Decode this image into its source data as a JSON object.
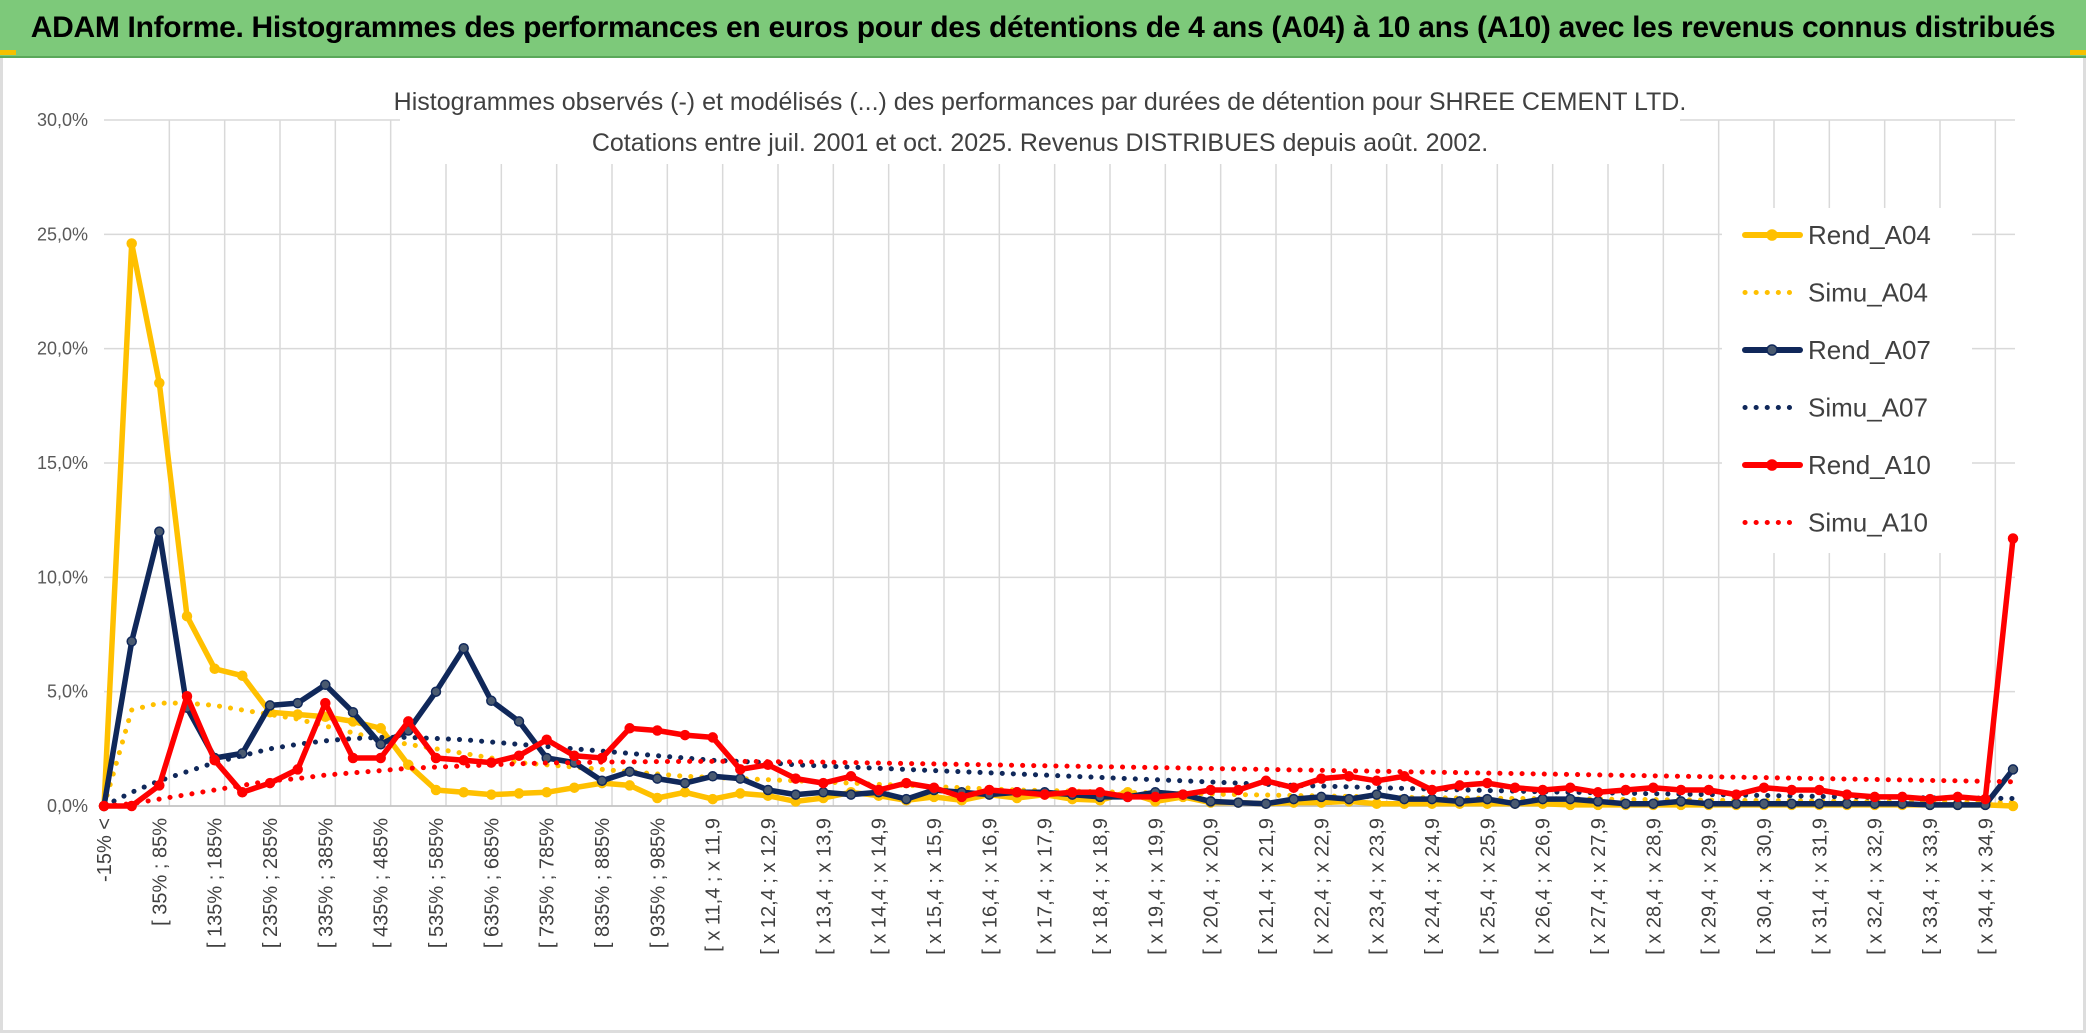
{
  "banner": {
    "title": "ADAM Informe. Histogrammes des performances en euros pour des détentions de 4 ans (A04) à 10 ans (A10) avec les revenus connus distribués"
  },
  "colors": {
    "banner": "#7dc97a",
    "gold": "#ffc000",
    "navy": "#10285a",
    "red": "#ff0000",
    "marker_grey": "#4a5a70"
  },
  "chart_data": {
    "type": "line",
    "title": [
      "Histogrammes observés (-) et modélisés (...) des performances par durées de détention pour SHREE CEMENT LTD.",
      "Cotations entre juil. 2001 et oct. 2025. Revenus DISTRIBUES depuis août. 2002."
    ],
    "xlabel": "",
    "ylabel": "",
    "ylim": [
      0,
      30
    ],
    "yticks": [
      "0,0%",
      "5,0%",
      "10,0%",
      "15,0%",
      "20,0%",
      "25,0%",
      "30,0%"
    ],
    "grid": true,
    "legend_position": "right",
    "category_labels": [
      "-15% <",
      "[ 35% ; 85%",
      "[ 135% ; 185%",
      "[ 235% ; 285%",
      "[ 335% ; 385%",
      "[ 435% ; 485%",
      "[ 535% ; 585%",
      "[ 635% ; 685%",
      "[ 735% ; 785%",
      "[ 835% ; 885%",
      "[ 935% ; 985%",
      "[ x 11,4 ; x 11,9",
      "[ x 12,4 ; x 12,9",
      "[ x 13,4 ; x 13,9",
      "[ x 14,4 ; x 14,9",
      "[ x 15,4 ; x 15,9",
      "[ x 16,4 ; x 16,9",
      "[ x 17,4 ; x 17,9",
      "[ x 18,4 ; x 18,9",
      "[ x 19,4 ; x 19,9",
      "[ x 20,4 ; x 20,9",
      "[ x 21,4 ; x 21,9",
      "[ x 22,4 ; x 22,9",
      "[ x 23,4 ; x 23,9",
      "[ x 24,4 ; x 24,9",
      "[ x 25,4 ; x 25,9",
      "[ x 26,4 ; x 26,9",
      "[ x 27,4 ; x 27,9",
      "[ x 28,4 ; x 28,9",
      "[ x 29,4 ; x 29,9",
      "[ x 30,4 ; x 30,9",
      "[ x 31,4 ; x 31,9",
      "[ x 32,4 ; x 32,9",
      "[ x 33,4 ; x 33,9",
      "[ x 34,4 ; x 34,9"
    ],
    "n_points": 70,
    "series": [
      {
        "name": "Rend_A04",
        "style": "solid",
        "markers": true,
        "color": "#ffc000",
        "values": [
          0.0,
          24.6,
          18.5,
          8.3,
          6.0,
          5.7,
          4.1,
          4.0,
          3.9,
          3.7,
          3.4,
          1.8,
          0.7,
          0.6,
          0.5,
          0.55,
          0.6,
          0.8,
          1.0,
          0.9,
          0.35,
          0.6,
          0.3,
          0.55,
          0.45,
          0.2,
          0.35,
          0.6,
          0.45,
          0.25,
          0.4,
          0.25,
          0.5,
          0.35,
          0.5,
          0.3,
          0.25,
          0.6,
          0.2,
          0.4,
          0.15,
          0.15,
          0.1,
          0.15,
          0.15,
          0.2,
          0.1,
          0.1,
          0.1,
          0.1,
          0.1,
          0.1,
          0.1,
          0.05,
          0.05,
          0.05,
          0.05,
          0.05,
          0.05,
          0.05,
          0.05,
          0.05,
          0.05,
          0.05,
          0.05,
          0.05,
          0.05,
          0.05,
          0.05,
          0.0
        ]
      },
      {
        "name": "Simu_A04",
        "style": "dotted",
        "markers": false,
        "color": "#ffc000",
        "values": [
          0.0,
          4.2,
          4.5,
          4.5,
          4.4,
          4.2,
          4.0,
          3.8,
          3.5,
          3.2,
          2.9,
          2.7,
          2.5,
          2.3,
          2.1,
          1.9,
          1.8,
          1.7,
          1.6,
          1.5,
          1.4,
          1.3,
          1.25,
          1.2,
          1.15,
          1.1,
          1.05,
          1.0,
          0.95,
          0.9,
          0.85,
          0.8,
          0.75,
          0.7,
          0.68,
          0.65,
          0.62,
          0.6,
          0.57,
          0.55,
          0.52,
          0.5,
          0.48,
          0.46,
          0.44,
          0.42,
          0.4,
          0.38,
          0.36,
          0.35,
          0.34,
          0.33,
          0.32,
          0.31,
          0.3,
          0.29,
          0.28,
          0.27,
          0.26,
          0.25,
          0.24,
          0.23,
          0.22,
          0.21,
          0.2,
          0.19,
          0.18,
          0.17,
          0.16,
          0.15
        ]
      },
      {
        "name": "Rend_A07",
        "style": "solid",
        "markers": true,
        "color": "#10285a",
        "values": [
          0.0,
          7.2,
          12.0,
          4.3,
          2.1,
          2.3,
          4.4,
          4.5,
          5.3,
          4.1,
          2.7,
          3.3,
          5.0,
          6.9,
          4.6,
          3.7,
          2.1,
          1.9,
          1.1,
          1.5,
          1.2,
          1.0,
          1.3,
          1.2,
          0.7,
          0.5,
          0.6,
          0.5,
          0.6,
          0.3,
          0.7,
          0.6,
          0.5,
          0.6,
          0.6,
          0.5,
          0.4,
          0.4,
          0.6,
          0.5,
          0.2,
          0.15,
          0.1,
          0.3,
          0.4,
          0.3,
          0.5,
          0.3,
          0.3,
          0.2,
          0.3,
          0.1,
          0.3,
          0.3,
          0.2,
          0.1,
          0.1,
          0.2,
          0.1,
          0.1,
          0.1,
          0.1,
          0.1,
          0.1,
          0.1,
          0.1,
          0.05,
          0.05,
          0.05,
          1.6
        ]
      },
      {
        "name": "Simu_A07",
        "style": "dotted",
        "markers": false,
        "color": "#10285a",
        "values": [
          0.0,
          0.6,
          1.1,
          1.5,
          1.9,
          2.2,
          2.5,
          2.7,
          2.85,
          2.95,
          3.0,
          3.0,
          2.95,
          2.9,
          2.8,
          2.7,
          2.6,
          2.5,
          2.4,
          2.3,
          2.2,
          2.1,
          2.0,
          1.95,
          1.9,
          1.8,
          1.75,
          1.7,
          1.65,
          1.6,
          1.55,
          1.5,
          1.45,
          1.4,
          1.35,
          1.3,
          1.25,
          1.2,
          1.15,
          1.1,
          1.05,
          1.0,
          0.95,
          0.9,
          0.87,
          0.84,
          0.8,
          0.77,
          0.74,
          0.71,
          0.68,
          0.65,
          0.62,
          0.6,
          0.58,
          0.56,
          0.54,
          0.52,
          0.5,
          0.48,
          0.46,
          0.44,
          0.42,
          0.4,
          0.38,
          0.37,
          0.36,
          0.35,
          0.34,
          0.33
        ]
      },
      {
        "name": "Rend_A10",
        "style": "solid",
        "markers": true,
        "color": "#ff0000",
        "values": [
          0.0,
          0.0,
          0.9,
          4.8,
          2.0,
          0.6,
          1.0,
          1.6,
          4.5,
          2.1,
          2.1,
          3.7,
          2.1,
          2.0,
          1.9,
          2.2,
          2.9,
          2.2,
          2.1,
          3.4,
          3.3,
          3.1,
          3.0,
          1.6,
          1.8,
          1.2,
          1.0,
          1.3,
          0.7,
          1.0,
          0.8,
          0.4,
          0.7,
          0.6,
          0.5,
          0.6,
          0.6,
          0.4,
          0.4,
          0.5,
          0.7,
          0.7,
          1.1,
          0.8,
          1.2,
          1.3,
          1.1,
          1.3,
          0.7,
          0.9,
          1.0,
          0.8,
          0.7,
          0.8,
          0.6,
          0.7,
          0.8,
          0.7,
          0.7,
          0.5,
          0.8,
          0.7,
          0.7,
          0.5,
          0.4,
          0.4,
          0.3,
          0.4,
          0.3,
          11.7
        ]
      },
      {
        "name": "Simu_A10",
        "style": "dotted",
        "markers": false,
        "color": "#ff0000",
        "values": [
          0.0,
          0.1,
          0.3,
          0.5,
          0.7,
          0.9,
          1.1,
          1.2,
          1.35,
          1.45,
          1.55,
          1.65,
          1.7,
          1.75,
          1.8,
          1.85,
          1.88,
          1.9,
          1.92,
          1.93,
          1.94,
          1.95,
          1.95,
          1.95,
          1.94,
          1.93,
          1.92,
          1.9,
          1.88,
          1.86,
          1.84,
          1.82,
          1.8,
          1.78,
          1.76,
          1.74,
          1.72,
          1.7,
          1.68,
          1.66,
          1.64,
          1.62,
          1.6,
          1.58,
          1.56,
          1.54,
          1.52,
          1.5,
          1.48,
          1.46,
          1.44,
          1.42,
          1.4,
          1.38,
          1.36,
          1.34,
          1.32,
          1.3,
          1.28,
          1.26,
          1.24,
          1.22,
          1.2,
          1.18,
          1.16,
          1.14,
          1.12,
          1.1,
          1.08,
          1.06
        ]
      }
    ]
  }
}
